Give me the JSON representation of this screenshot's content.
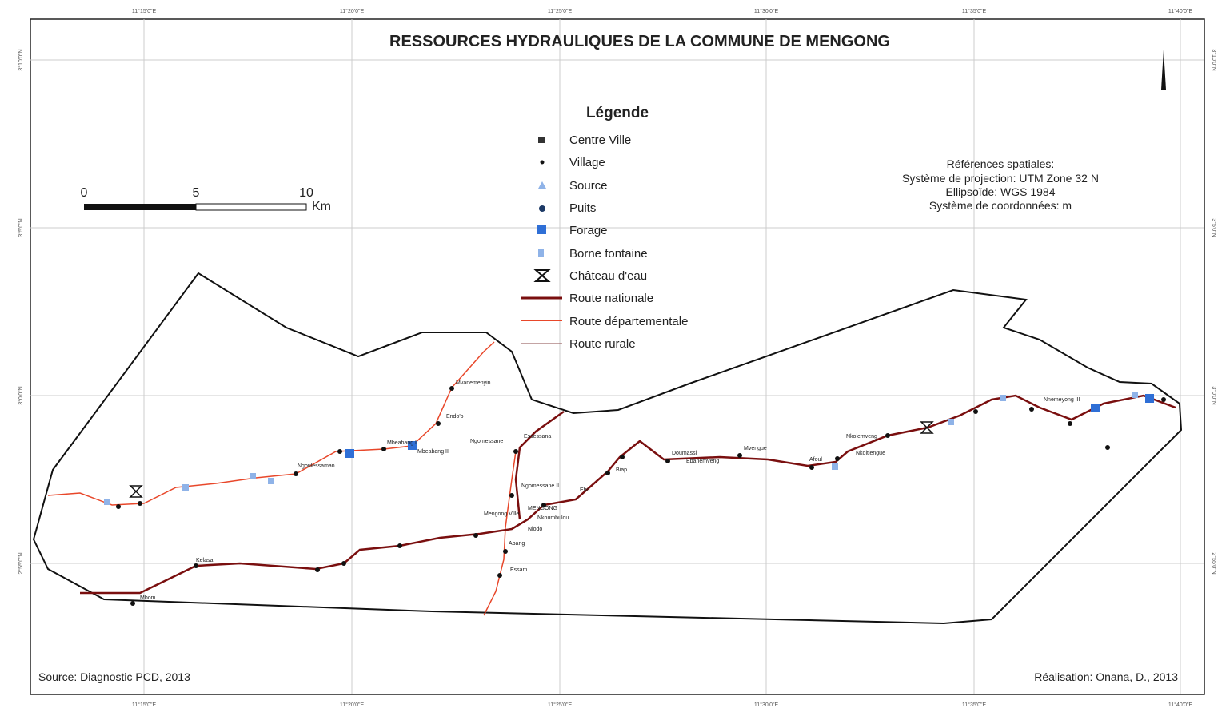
{
  "title": "RESSOURCES HYDRAULIQUES DE LA COMMUNE DE MENGONG",
  "legend": {
    "title": "Légende",
    "items": [
      "Centre Ville",
      "Village",
      "Source",
      "Puits",
      "Forage",
      "Borne fontaine",
      "Château d'eau",
      "Route nationale",
      "Route départementale",
      "Route rurale"
    ]
  },
  "scale_bar": {
    "labels": [
      "0",
      "5",
      "10"
    ],
    "unit": "Km"
  },
  "spatial_references": [
    "Références spatiales:",
    "Système de projection: UTM Zone 32 N",
    "Ellipsoïde: WGS 1984",
    "Système de coordonnées: m"
  ],
  "source": "Source: Diagnostic PCD, 2013",
  "credit": "Réalisation: Onana, D., 2013",
  "longitudes": [
    "11°15'0\"E",
    "11°20'0\"E",
    "11°25'0\"E",
    "11°30'0\"E",
    "11°35'0\"E",
    "11°40'0\"E"
  ],
  "latitudes": [
    "3°10'0\"N",
    "3°5'0\"N",
    "3°0'0\"N",
    "2°55'0\"N"
  ],
  "places": [
    "Mvanemenyin",
    "Endo'o",
    "Mbeabang I",
    "Mbeabang II",
    "Ngomessane",
    "Essessana",
    "Ngomessane II",
    "Mengong Ville",
    "MENGONG",
    "Nkoumbulou",
    "Nlodo",
    "Abang",
    "Essam",
    "Ebo",
    "Biap",
    "Doumassi",
    "Ebanemveng",
    "Mvengue",
    "Afoul",
    "Nkoltiengue",
    "Nkolemveng",
    "Nnemeyong III",
    "Kelasa",
    "Ngoulessaman",
    "Mbom"
  ]
}
